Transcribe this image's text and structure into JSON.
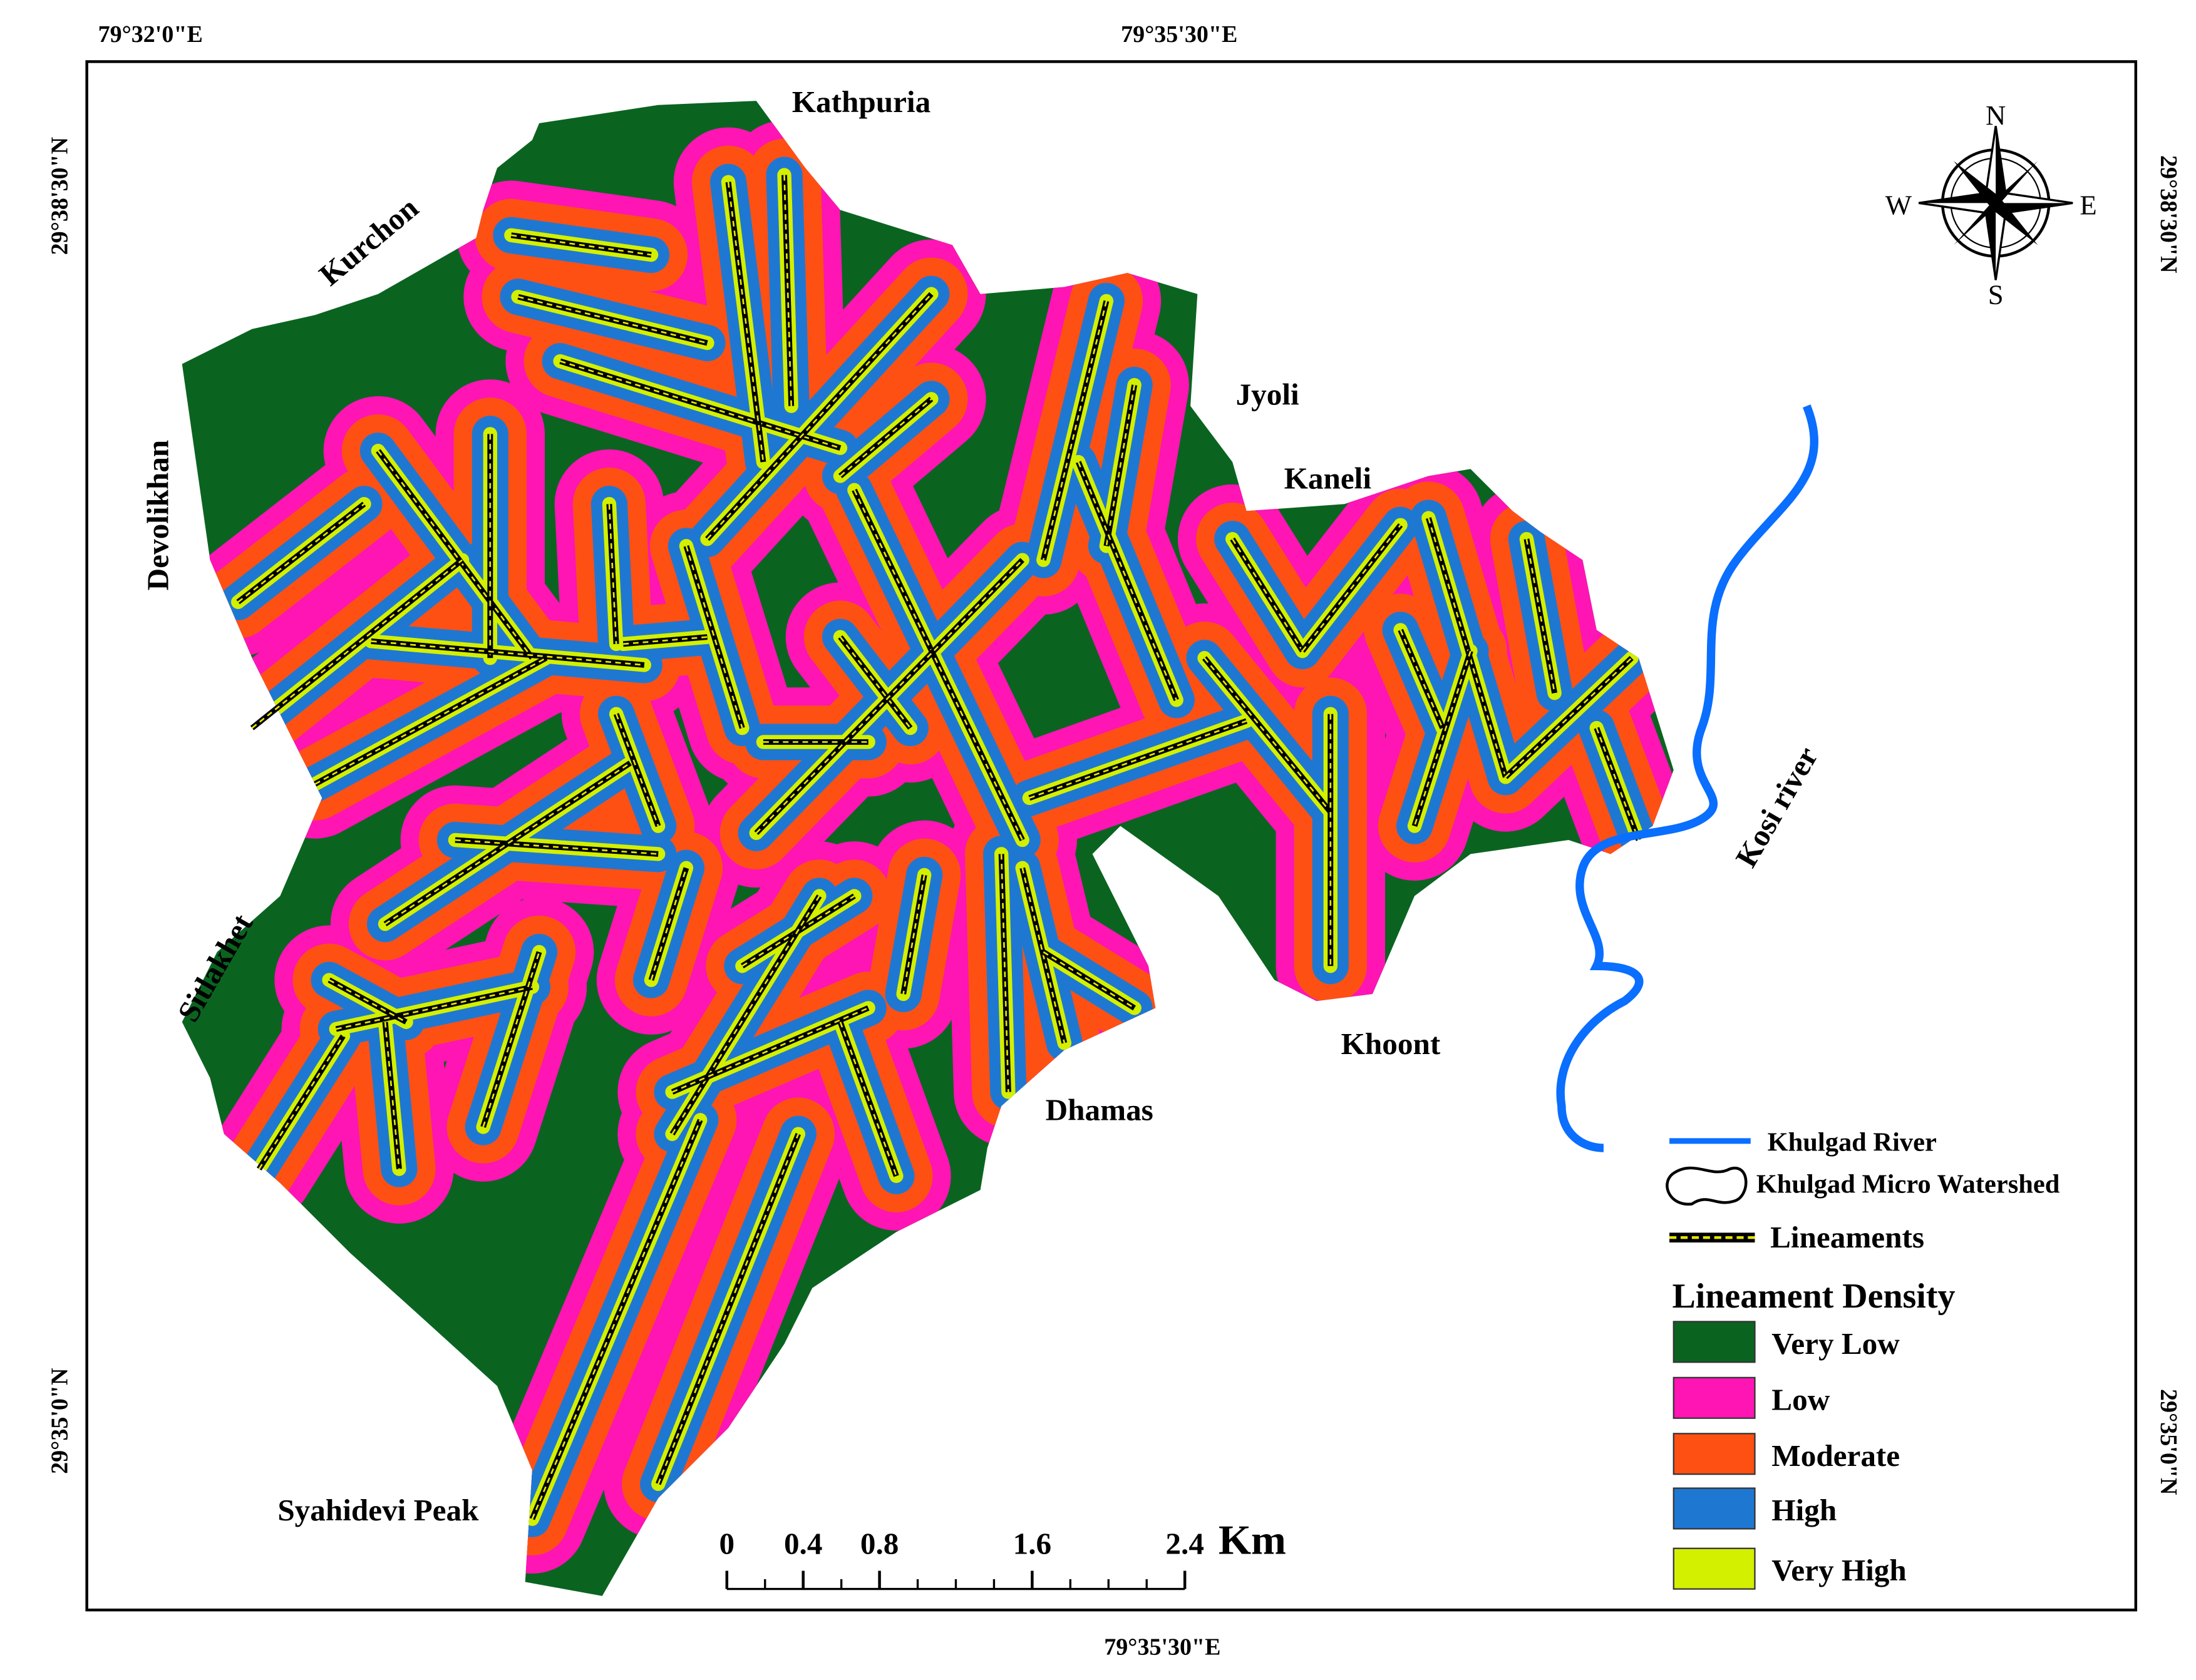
{
  "coordinates": {
    "top": [
      "79°32'0\"E",
      "79°35'30\"E"
    ],
    "bottom": [
      "79°35'30\"E"
    ],
    "left": [
      "29°38'30\"N",
      "29°35'0\"N"
    ],
    "right": [
      "29°38'30\"N",
      "29°35'0\"N"
    ]
  },
  "places": [
    "Kathpuria",
    "Kurchon",
    "Devolikhan",
    "Jyoli",
    "Kaneli",
    "Sitlakhet",
    "Khoont",
    "Dhamas",
    "Syahidevi Peak",
    "Kosi river"
  ],
  "compass": {
    "north": "N",
    "east": "E",
    "south": "S",
    "west": "W"
  },
  "scale_bar": {
    "ticks": [
      0,
      0.4,
      0.8,
      1.6,
      2.4
    ],
    "unit": "Km"
  },
  "legend": {
    "river": "Khulgad River",
    "watershed": "Khulgad Micro Watershed",
    "lineaments": "Lineaments",
    "title": "Lineament Density",
    "classes": [
      {
        "label": "Very Low",
        "color": "#0a6420"
      },
      {
        "label": "Low",
        "color": "#ff14b4"
      },
      {
        "label": "Moderate",
        "color": "#ff5014"
      },
      {
        "label": "High",
        "color": "#1e78d2"
      },
      {
        "label": "Very High",
        "color": "#d2f000"
      }
    ]
  }
}
